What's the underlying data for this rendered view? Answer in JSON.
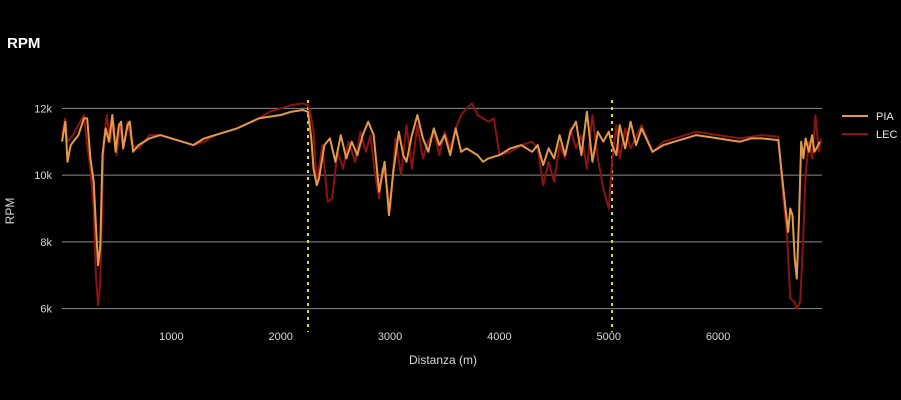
{
  "chart_data": {
    "type": "line",
    "title": "RPM",
    "xlabel": "Distanza (m)",
    "ylabel": "RPM",
    "xlim": [
      0,
      6950
    ],
    "ylim": [
      5900,
      12550
    ],
    "x_ticks": [
      1000,
      2000,
      3000,
      4000,
      5000,
      6000
    ],
    "x_tick_labels": [
      "1000",
      "2000",
      "3000",
      "4000",
      "5000",
      "6000"
    ],
    "y_ticks": [
      6000,
      8000,
      10000,
      12000
    ],
    "y_tick_labels": [
      "6k",
      "8k",
      "10k",
      "12k"
    ],
    "grid": "horizontal",
    "legend_position": "right",
    "vertical_markers": [
      2250,
      5030
    ],
    "marker_color": "#e8d44d",
    "series": [
      {
        "name": "PIA",
        "color": "#e39a4a",
        "points": [
          [
            0,
            11000
          ],
          [
            30,
            11600
          ],
          [
            50,
            10400
          ],
          [
            80,
            10900
          ],
          [
            150,
            11200
          ],
          [
            200,
            11700
          ],
          [
            230,
            11700
          ],
          [
            260,
            10500
          ],
          [
            290,
            9800
          ],
          [
            310,
            8500
          ],
          [
            330,
            7300
          ],
          [
            350,
            7900
          ],
          [
            370,
            10600
          ],
          [
            400,
            11400
          ],
          [
            430,
            11000
          ],
          [
            460,
            11800
          ],
          [
            490,
            10700
          ],
          [
            520,
            11500
          ],
          [
            540,
            11600
          ],
          [
            560,
            10800
          ],
          [
            600,
            11500
          ],
          [
            620,
            11600
          ],
          [
            650,
            10700
          ],
          [
            700,
            10900
          ],
          [
            800,
            11100
          ],
          [
            900,
            11200
          ],
          [
            1000,
            11100
          ],
          [
            1100,
            11000
          ],
          [
            1200,
            10900
          ],
          [
            1300,
            11100
          ],
          [
            1400,
            11200
          ],
          [
            1600,
            11400
          ],
          [
            1800,
            11700
          ],
          [
            2000,
            11800
          ],
          [
            2100,
            11900
          ],
          [
            2200,
            11950
          ],
          [
            2250,
            11900
          ],
          [
            2280,
            11100
          ],
          [
            2300,
            10200
          ],
          [
            2330,
            9700
          ],
          [
            2350,
            9900
          ],
          [
            2400,
            10900
          ],
          [
            2450,
            11100
          ],
          [
            2500,
            10400
          ],
          [
            2550,
            11200
          ],
          [
            2600,
            10500
          ],
          [
            2650,
            11000
          ],
          [
            2700,
            10600
          ],
          [
            2750,
            11200
          ],
          [
            2800,
            11600
          ],
          [
            2850,
            11200
          ],
          [
            2900,
            9500
          ],
          [
            2950,
            10400
          ],
          [
            2990,
            8800
          ],
          [
            3030,
            10100
          ],
          [
            3080,
            11300
          ],
          [
            3120,
            10600
          ],
          [
            3150,
            10400
          ],
          [
            3200,
            11200
          ],
          [
            3250,
            11800
          ],
          [
            3300,
            11100
          ],
          [
            3350,
            10700
          ],
          [
            3400,
            11400
          ],
          [
            3450,
            10900
          ],
          [
            3500,
            11200
          ],
          [
            3550,
            10600
          ],
          [
            3600,
            11400
          ],
          [
            3650,
            10700
          ],
          [
            3700,
            10800
          ],
          [
            3800,
            10600
          ],
          [
            3850,
            10400
          ],
          [
            3900,
            10500
          ],
          [
            4000,
            10600
          ],
          [
            4100,
            10800
          ],
          [
            4200,
            10900
          ],
          [
            4300,
            10700
          ],
          [
            4350,
            10900
          ],
          [
            4400,
            10300
          ],
          [
            4450,
            10800
          ],
          [
            4500,
            10500
          ],
          [
            4550,
            11200
          ],
          [
            4600,
            10600
          ],
          [
            4650,
            11300
          ],
          [
            4700,
            11600
          ],
          [
            4750,
            10600
          ],
          [
            4800,
            11900
          ],
          [
            4850,
            10400
          ],
          [
            4900,
            11300
          ],
          [
            4950,
            11000
          ],
          [
            5000,
            11300
          ],
          [
            5030,
            10900
          ],
          [
            5070,
            10600
          ],
          [
            5100,
            11500
          ],
          [
            5150,
            10800
          ],
          [
            5200,
            11600
          ],
          [
            5250,
            10900
          ],
          [
            5300,
            11400
          ],
          [
            5400,
            10700
          ],
          [
            5500,
            10900
          ],
          [
            5600,
            11000
          ],
          [
            5700,
            11100
          ],
          [
            5800,
            11200
          ],
          [
            5900,
            11150
          ],
          [
            6000,
            11100
          ],
          [
            6100,
            11050
          ],
          [
            6200,
            11000
          ],
          [
            6300,
            11100
          ],
          [
            6400,
            11100
          ],
          [
            6550,
            11050
          ],
          [
            6600,
            9500
          ],
          [
            6640,
            8300
          ],
          [
            6660,
            9000
          ],
          [
            6680,
            8800
          ],
          [
            6700,
            7500
          ],
          [
            6720,
            6900
          ],
          [
            6740,
            8700
          ],
          [
            6760,
            11000
          ],
          [
            6780,
            10500
          ],
          [
            6800,
            11100
          ],
          [
            6830,
            10700
          ],
          [
            6860,
            11200
          ],
          [
            6880,
            10700
          ],
          [
            6900,
            10800
          ],
          [
            6930,
            11000
          ]
        ]
      },
      {
        "name": "LEC",
        "color": "#8a1414",
        "points": [
          [
            0,
            11200
          ],
          [
            30,
            11700
          ],
          [
            50,
            11000
          ],
          [
            100,
            11200
          ],
          [
            200,
            11800
          ],
          [
            230,
            10900
          ],
          [
            260,
            10200
          ],
          [
            290,
            9000
          ],
          [
            310,
            7000
          ],
          [
            330,
            6100
          ],
          [
            350,
            6800
          ],
          [
            380,
            11000
          ],
          [
            410,
            11800
          ],
          [
            440,
            11000
          ],
          [
            470,
            11600
          ],
          [
            500,
            10600
          ],
          [
            530,
            11500
          ],
          [
            560,
            10800
          ],
          [
            600,
            11600
          ],
          [
            640,
            10900
          ],
          [
            700,
            10800
          ],
          [
            800,
            11200
          ],
          [
            900,
            11200
          ],
          [
            1000,
            11100
          ],
          [
            1100,
            11000
          ],
          [
            1200,
            10900
          ],
          [
            1300,
            11000
          ],
          [
            1400,
            11200
          ],
          [
            1600,
            11400
          ],
          [
            1800,
            11700
          ],
          [
            1900,
            11900
          ],
          [
            2000,
            12000
          ],
          [
            2100,
            12100
          ],
          [
            2200,
            12150
          ],
          [
            2250,
            12100
          ],
          [
            2270,
            11900
          ],
          [
            2300,
            11300
          ],
          [
            2330,
            9700
          ],
          [
            2380,
            10900
          ],
          [
            2430,
            9200
          ],
          [
            2470,
            9300
          ],
          [
            2520,
            10700
          ],
          [
            2570,
            10200
          ],
          [
            2620,
            11000
          ],
          [
            2680,
            10400
          ],
          [
            2730,
            11300
          ],
          [
            2780,
            10700
          ],
          [
            2820,
            11200
          ],
          [
            2860,
            10100
          ],
          [
            2900,
            9300
          ],
          [
            2930,
            10200
          ],
          [
            2960,
            9900
          ],
          [
            3000,
            9000
          ],
          [
            3050,
            11100
          ],
          [
            3100,
            10000
          ],
          [
            3150,
            11500
          ],
          [
            3200,
            10200
          ],
          [
            3250,
            11500
          ],
          [
            3300,
            10500
          ],
          [
            3350,
            11000
          ],
          [
            3400,
            11300
          ],
          [
            3450,
            10600
          ],
          [
            3500,
            11300
          ],
          [
            3550,
            10800
          ],
          [
            3600,
            11400
          ],
          [
            3650,
            11800
          ],
          [
            3700,
            12000
          ],
          [
            3750,
            12150
          ],
          [
            3800,
            11800
          ],
          [
            3850,
            11700
          ],
          [
            3900,
            11600
          ],
          [
            3950,
            11700
          ],
          [
            4000,
            10600
          ],
          [
            4100,
            10700
          ],
          [
            4200,
            10900
          ],
          [
            4300,
            11000
          ],
          [
            4350,
            10800
          ],
          [
            4400,
            9700
          ],
          [
            4450,
            10400
          ],
          [
            4500,
            9800
          ],
          [
            4550,
            10900
          ],
          [
            4600,
            10500
          ],
          [
            4650,
            11400
          ],
          [
            4700,
            10800
          ],
          [
            4750,
            11200
          ],
          [
            4800,
            10200
          ],
          [
            4850,
            11800
          ],
          [
            4900,
            10500
          ],
          [
            4950,
            9600
          ],
          [
            5000,
            9000
          ],
          [
            5030,
            10400
          ],
          [
            5070,
            11500
          ],
          [
            5100,
            10500
          ],
          [
            5150,
            11400
          ],
          [
            5200,
            10800
          ],
          [
            5300,
            11500
          ],
          [
            5400,
            10700
          ],
          [
            5500,
            11000
          ],
          [
            5600,
            11100
          ],
          [
            5700,
            11200
          ],
          [
            5800,
            11300
          ],
          [
            5900,
            11250
          ],
          [
            6000,
            11200
          ],
          [
            6100,
            11150
          ],
          [
            6200,
            11100
          ],
          [
            6300,
            11150
          ],
          [
            6400,
            11200
          ],
          [
            6550,
            11150
          ],
          [
            6600,
            9200
          ],
          [
            6630,
            8200
          ],
          [
            6660,
            6300
          ],
          [
            6700,
            6200
          ],
          [
            6720,
            6000
          ],
          [
            6750,
            6200
          ],
          [
            6770,
            7500
          ],
          [
            6800,
            10000
          ],
          [
            6830,
            11000
          ],
          [
            6860,
            10500
          ],
          [
            6890,
            11800
          ],
          [
            6920,
            10700
          ],
          [
            6940,
            11100
          ]
        ]
      }
    ]
  }
}
